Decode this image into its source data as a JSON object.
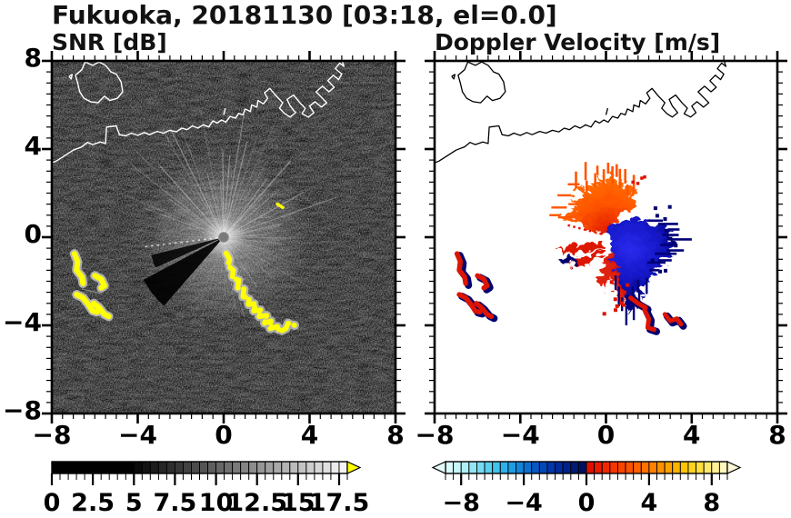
{
  "figure": {
    "title": "Fukuoka, 20181130 [03:18, el=0.0]",
    "station": "Fukuoka",
    "date": "20181130",
    "time": "03:18",
    "elevation": "el=0.0"
  },
  "chart_data": [
    {
      "type": "heatmap",
      "title": "SNR [dB]",
      "variable": "radar signal-to-noise ratio PPI",
      "xlim": [
        -8,
        8
      ],
      "ylim": [
        -8,
        8
      ],
      "x_tick_values": [
        -8,
        -4,
        0,
        4,
        8
      ],
      "x_tick_labels": [
        "−8",
        "−4",
        "0",
        "4",
        "8"
      ],
      "y_tick_values": [
        8,
        4,
        0,
        -4,
        -8
      ],
      "y_tick_labels": [
        "8",
        "4",
        "0",
        "−4",
        "−8"
      ],
      "minor_tick_step": 0.5,
      "background": "#000000",
      "coast_color": "#ffffff",
      "radar_center": [
        0,
        0
      ],
      "colorbar": {
        "range": [
          0,
          18
        ],
        "segment_step": 0.5,
        "tick_values": [
          0,
          2.5,
          5,
          7.5,
          10,
          12.5,
          15,
          17.5
        ],
        "tick_labels": [
          "0",
          "2.5",
          "5",
          "7.5",
          "10",
          "12.5",
          "15",
          "17.5"
        ],
        "over_arrow_color": "#ffff00",
        "colors": [
          "#000000",
          "#000000",
          "#000000",
          "#000000",
          "#000000",
          "#000000",
          "#000000",
          "#000000",
          "#000000",
          "#000000",
          "#0a0a0a",
          "#131313",
          "#1c1c1c",
          "#262626",
          "#2f2f2f",
          "#383838",
          "#424242",
          "#4b4b4b",
          "#545454",
          "#5e5e5e",
          "#676767",
          "#707070",
          "#7a7a7a",
          "#838383",
          "#8c8c8c",
          "#969696",
          "#9f9f9f",
          "#a8a8a8",
          "#b2b2b2",
          "#bbbbbb",
          "#c4c4c4",
          "#cecece",
          "#d7d7d7",
          "#e0e0e0",
          "#eaeaea",
          "#f3f3f3"
        ]
      },
      "features": {
        "chain_color": "#ffff00",
        "halo_color": "#c4c4c4",
        "ship_chain": [
          [
            0.12,
            -0.72
          ],
          [
            0.28,
            -1.0
          ],
          [
            0.2,
            -1.3
          ],
          [
            0.45,
            -1.5
          ],
          [
            0.4,
            -1.85
          ],
          [
            0.7,
            -1.95
          ],
          [
            0.65,
            -2.3
          ],
          [
            0.95,
            -2.35
          ],
          [
            0.9,
            -2.7
          ],
          [
            1.2,
            -2.75
          ],
          [
            1.15,
            -3.05
          ],
          [
            1.5,
            -3.0
          ],
          [
            1.4,
            -3.35
          ],
          [
            1.75,
            -3.3
          ],
          [
            1.65,
            -3.6
          ],
          [
            2.0,
            -3.55
          ],
          [
            1.9,
            -3.9
          ],
          [
            2.2,
            -3.8
          ],
          [
            2.15,
            -4.15
          ],
          [
            2.5,
            -4.05
          ],
          [
            2.6,
            -4.3
          ],
          [
            2.9,
            -4.15
          ],
          [
            3.0,
            -3.9
          ],
          [
            3.3,
            -4.0
          ]
        ],
        "cluster": [
          [
            [
              -6.95,
              -0.75
            ],
            [
              -6.8,
              -1.1
            ],
            [
              -6.85,
              -1.5
            ],
            [
              -6.6,
              -1.8
            ],
            [
              -6.55,
              -2.1
            ]
          ],
          [
            [
              -6.0,
              -1.75
            ],
            [
              -5.7,
              -1.9
            ],
            [
              -5.55,
              -2.2
            ],
            [
              -5.7,
              -2.3
            ]
          ],
          [
            [
              -6.85,
              -2.6
            ],
            [
              -6.55,
              -2.75
            ],
            [
              -6.3,
              -3.05
            ],
            [
              -6.1,
              -3.35
            ],
            [
              -5.9,
              -3.4
            ]
          ],
          [
            [
              -6.05,
              -3.0
            ],
            [
              -5.8,
              -3.2
            ],
            [
              -5.55,
              -3.5
            ],
            [
              -5.35,
              -3.6
            ]
          ]
        ],
        "small_echo": [
          [
            2.5,
            1.5
          ],
          [
            2.75,
            1.35
          ]
        ],
        "faint_streak": [
          [
            -6.6,
            -2.35
          ],
          [
            -5.7,
            -2.55
          ]
        ]
      }
    },
    {
      "type": "heatmap",
      "title": "Doppler Velocity [m/s]",
      "variable": "radar Doppler velocity PPI",
      "xlim": [
        -8,
        8
      ],
      "ylim": [
        -8,
        8
      ],
      "x_tick_values": [
        -8,
        -4,
        0,
        4,
        8
      ],
      "x_tick_labels": [
        "−8",
        "−4",
        "0",
        "4",
        "8"
      ],
      "y_tick_values": [
        8,
        4,
        0,
        -4,
        -8
      ],
      "y_tick_labels": [],
      "minor_tick_step": 0.5,
      "background": "#ffffff",
      "coast_color": "#000000",
      "radar_center": [
        0,
        0
      ],
      "colorbar": {
        "range": [
          -9,
          9
        ],
        "segment_step": 0.5,
        "tick_values": [
          -8,
          -4,
          0,
          4,
          8
        ],
        "tick_labels": [
          "−8",
          "−4",
          "0",
          "4",
          "8"
        ],
        "under_arrow_color": "#e4fbfb",
        "over_arrow_color": "#fff8d8",
        "colors": [
          "#dcfafa",
          "#c6f5f8",
          "#aeeef6",
          "#93e6f4",
          "#76dcf2",
          "#58d0ef",
          "#40c2ec",
          "#2eb1e8",
          "#1f9de2",
          "#1486da",
          "#0c6fd0",
          "#0659c4",
          "#0347b8",
          "#0137aa",
          "#002c9a",
          "#002288",
          "#001a74",
          "#001160",
          "#e01000",
          "#e81c00",
          "#f02800",
          "#f53600",
          "#f94400",
          "#fc5300",
          "#ff6300",
          "#ff7200",
          "#ff8100",
          "#ff9100",
          "#ffa100",
          "#ffb200",
          "#ffc30a",
          "#ffd21e",
          "#ffdf3e",
          "#ffe96a",
          "#fff096",
          "#fff7bc"
        ]
      },
      "features": {
        "colors": {
          "toward_core": "#2a2aee",
          "toward_mid": "#1518c8",
          "toward_edge": "#000078",
          "away_core": "#e01800",
          "away_mid": "#ff5500",
          "away_edge": "#ff7f00",
          "accent_red": "#dd1400",
          "accent_navy": "#000070"
        },
        "away_lobe": [
          [
            -0.15,
            0.25
          ],
          [
            -0.9,
            0.5
          ],
          [
            -1.6,
            0.9
          ],
          [
            -2.3,
            1.0
          ],
          [
            -2.0,
            1.35
          ],
          [
            -1.5,
            1.5
          ],
          [
            -1.8,
            1.9
          ],
          [
            -1.3,
            1.95
          ],
          [
            -1.4,
            2.4
          ],
          [
            -0.9,
            2.2
          ],
          [
            -0.95,
            2.75
          ],
          [
            -0.5,
            2.45
          ],
          [
            -0.4,
            3.0
          ],
          [
            -0.1,
            2.55
          ],
          [
            0.1,
            3.05
          ],
          [
            0.3,
            2.6
          ],
          [
            0.5,
            2.9
          ],
          [
            0.65,
            2.4
          ],
          [
            0.9,
            2.6
          ],
          [
            1.0,
            2.1
          ],
          [
            1.3,
            2.25
          ],
          [
            1.25,
            1.8
          ],
          [
            1.05,
            1.45
          ],
          [
            0.6,
            1.2
          ],
          [
            0.3,
            0.9
          ],
          [
            0.12,
            0.5
          ],
          [
            0.0,
            0.25
          ]
        ],
        "toward_lobe": [
          [
            0.1,
            0.75
          ],
          [
            0.6,
            1.0
          ],
          [
            1.1,
            1.05
          ],
          [
            1.6,
            0.95
          ],
          [
            2.1,
            0.75
          ],
          [
            2.6,
            0.6
          ],
          [
            3.05,
            0.35
          ],
          [
            2.8,
            0.1
          ],
          [
            3.2,
            -0.1
          ],
          [
            2.7,
            -0.35
          ],
          [
            3.0,
            -0.6
          ],
          [
            2.45,
            -0.75
          ],
          [
            2.6,
            -1.05
          ],
          [
            2.1,
            -1.15
          ],
          [
            2.2,
            -1.5
          ],
          [
            1.8,
            -1.6
          ],
          [
            1.9,
            -2.0
          ],
          [
            1.5,
            -2.1
          ],
          [
            1.55,
            -2.55
          ],
          [
            1.25,
            -2.4
          ],
          [
            1.3,
            -3.1
          ],
          [
            1.0,
            -2.8
          ],
          [
            0.95,
            -3.3
          ],
          [
            0.75,
            -2.9
          ],
          [
            0.6,
            -2.4
          ],
          [
            0.45,
            -1.9
          ],
          [
            0.3,
            -1.4
          ],
          [
            0.15,
            -0.9
          ],
          [
            0.05,
            -0.4
          ],
          [
            0.02,
            0.2
          ]
        ],
        "west_wedges": [
          [
            [
              -0.25,
              -0.05
            ],
            [
              -1.6,
              -0.2
            ],
            [
              -2.6,
              -0.45
            ],
            [
              -1.7,
              -0.6
            ],
            [
              -0.3,
              -0.35
            ]
          ],
          [
            [
              -0.3,
              -0.45
            ],
            [
              -1.3,
              -0.8
            ],
            [
              -1.95,
              -1.25
            ],
            [
              -1.2,
              -1.05
            ],
            [
              -0.35,
              -0.7
            ]
          ]
        ],
        "west_navy": [
          [
            -1.95,
            -0.65
          ],
          [
            -1.5,
            -0.95
          ],
          [
            -1.7,
            -1.2
          ],
          [
            -2.15,
            -0.95
          ]
        ],
        "south_streak": [
          [
            0.05,
            -0.5
          ],
          [
            0.3,
            -1.0
          ],
          [
            0.5,
            -1.6
          ],
          [
            0.7,
            -2.2
          ],
          [
            0.55,
            -2.85
          ],
          [
            0.3,
            -2.3
          ],
          [
            0.1,
            -1.65
          ],
          [
            -0.1,
            -1.95
          ],
          [
            -0.28,
            -2.3
          ],
          [
            -0.42,
            -1.9
          ],
          [
            -0.3,
            -1.4
          ],
          [
            -0.15,
            -0.9
          ],
          [
            -0.05,
            -0.6
          ]
        ],
        "chain_blobs": [
          [
            [
              1.15,
              -2.75
            ],
            [
              1.5,
              -3.0
            ],
            [
              1.85,
              -3.2
            ]
          ],
          [
            [
              1.8,
              -3.3
            ],
            [
              2.0,
              -3.7
            ],
            [
              1.95,
              -4.1
            ],
            [
              2.25,
              -4.2
            ]
          ],
          [
            [
              2.75,
              -3.5
            ],
            [
              3.0,
              -3.8
            ],
            [
              3.3,
              -3.7
            ],
            [
              3.5,
              -3.95
            ]
          ]
        ],
        "cluster": [
          [
            [
              -6.95,
              -0.75
            ],
            [
              -6.8,
              -1.1
            ],
            [
              -6.85,
              -1.5
            ],
            [
              -6.6,
              -1.8
            ],
            [
              -6.55,
              -2.1
            ]
          ],
          [
            [
              -6.0,
              -1.75
            ],
            [
              -5.7,
              -1.9
            ],
            [
              -5.55,
              -2.2
            ],
            [
              -5.7,
              -2.3
            ]
          ],
          [
            [
              -6.85,
              -2.6
            ],
            [
              -6.55,
              -2.75
            ],
            [
              -6.3,
              -3.05
            ],
            [
              -6.1,
              -3.35
            ],
            [
              -5.9,
              -3.4
            ]
          ],
          [
            [
              -6.05,
              -3.0
            ],
            [
              -5.8,
              -3.2
            ],
            [
              -5.55,
              -3.5
            ],
            [
              -5.35,
              -3.6
            ]
          ]
        ],
        "dotted_ray": [
          [
            -0.2,
            0.15
          ],
          [
            -1.8,
            0.55
          ]
        ]
      }
    }
  ],
  "coastline": {
    "island": [
      [
        -6.8,
        7.0
      ],
      [
        -6.9,
        7.35
      ],
      [
        -6.6,
        7.6
      ],
      [
        -6.45,
        7.95
      ],
      [
        -6.1,
        7.8
      ],
      [
        -5.8,
        7.95
      ],
      [
        -5.5,
        7.8
      ],
      [
        -5.25,
        7.5
      ],
      [
        -5.0,
        7.4
      ],
      [
        -4.78,
        7.05
      ],
      [
        -4.7,
        6.6
      ],
      [
        -4.95,
        6.3
      ],
      [
        -5.3,
        6.2
      ],
      [
        -5.55,
        6.4
      ],
      [
        -5.85,
        6.1
      ],
      [
        -6.2,
        6.15
      ],
      [
        -6.5,
        6.3
      ],
      [
        -6.7,
        6.6
      ],
      [
        -6.8,
        7.0
      ]
    ],
    "islet": [
      [
        -7.2,
        7.3
      ],
      [
        -7.05,
        7.38
      ],
      [
        -7.1,
        7.18
      ],
      [
        -7.2,
        7.3
      ]
    ],
    "north_islet": [
      [
        0.0,
        5.55
      ],
      [
        0.08,
        5.85
      ]
    ],
    "mainland": [
      [
        -8.2,
        3.3
      ],
      [
        -7.8,
        3.45
      ],
      [
        -7.4,
        3.7
      ],
      [
        -7.0,
        3.95
      ],
      [
        -6.6,
        4.1
      ],
      [
        -6.35,
        4.3
      ],
      [
        -6.1,
        4.2
      ],
      [
        -5.75,
        4.32
      ],
      [
        -5.5,
        4.25
      ],
      [
        -5.45,
        5.0
      ],
      [
        -5.0,
        5.05
      ],
      [
        -4.85,
        4.65
      ],
      [
        -4.55,
        4.6
      ],
      [
        -4.3,
        4.72
      ],
      [
        -4.0,
        4.62
      ],
      [
        -3.7,
        4.75
      ],
      [
        -3.45,
        4.65
      ],
      [
        -3.1,
        4.8
      ],
      [
        -2.8,
        4.72
      ],
      [
        -2.5,
        4.85
      ],
      [
        -2.2,
        4.78
      ],
      [
        -1.95,
        4.95
      ],
      [
        -1.7,
        4.88
      ],
      [
        -1.45,
        5.05
      ],
      [
        -1.2,
        4.95
      ],
      [
        -0.95,
        5.1
      ],
      [
        -0.7,
        5.0
      ],
      [
        -0.5,
        5.28
      ],
      [
        -0.3,
        5.18
      ],
      [
        -0.1,
        5.32
      ],
      [
        0.1,
        5.22
      ],
      [
        0.3,
        5.48
      ],
      [
        0.55,
        5.4
      ],
      [
        0.7,
        5.62
      ],
      [
        0.9,
        5.55
      ],
      [
        1.0,
        5.82
      ],
      [
        1.25,
        5.7
      ],
      [
        1.3,
        6.0
      ],
      [
        1.55,
        5.9
      ],
      [
        1.6,
        6.2
      ],
      [
        1.85,
        6.05
      ],
      [
        2.05,
        6.3
      ],
      [
        1.9,
        6.55
      ],
      [
        2.15,
        6.75
      ],
      [
        2.45,
        6.4
      ],
      [
        2.75,
        6.1
      ],
      [
        2.6,
        5.85
      ],
      [
        2.85,
        5.6
      ],
      [
        3.1,
        5.45
      ],
      [
        3.35,
        5.65
      ],
      [
        3.1,
        5.95
      ],
      [
        2.95,
        6.25
      ],
      [
        3.25,
        6.45
      ],
      [
        3.55,
        6.1
      ],
      [
        3.8,
        5.85
      ],
      [
        3.65,
        5.6
      ],
      [
        3.95,
        5.45
      ],
      [
        4.2,
        5.65
      ],
      [
        4.0,
        5.95
      ],
      [
        4.25,
        6.15
      ],
      [
        4.55,
        5.9
      ],
      [
        4.8,
        6.1
      ],
      [
        4.5,
        6.4
      ],
      [
        4.3,
        6.6
      ],
      [
        4.6,
        6.85
      ],
      [
        4.9,
        6.6
      ],
      [
        5.15,
        6.8
      ],
      [
        4.85,
        7.1
      ],
      [
        5.1,
        7.35
      ],
      [
        5.35,
        7.15
      ],
      [
        5.5,
        7.4
      ],
      [
        5.2,
        7.65
      ],
      [
        5.4,
        7.9
      ],
      [
        5.6,
        7.75
      ],
      [
        5.45,
        8.2
      ]
    ]
  }
}
